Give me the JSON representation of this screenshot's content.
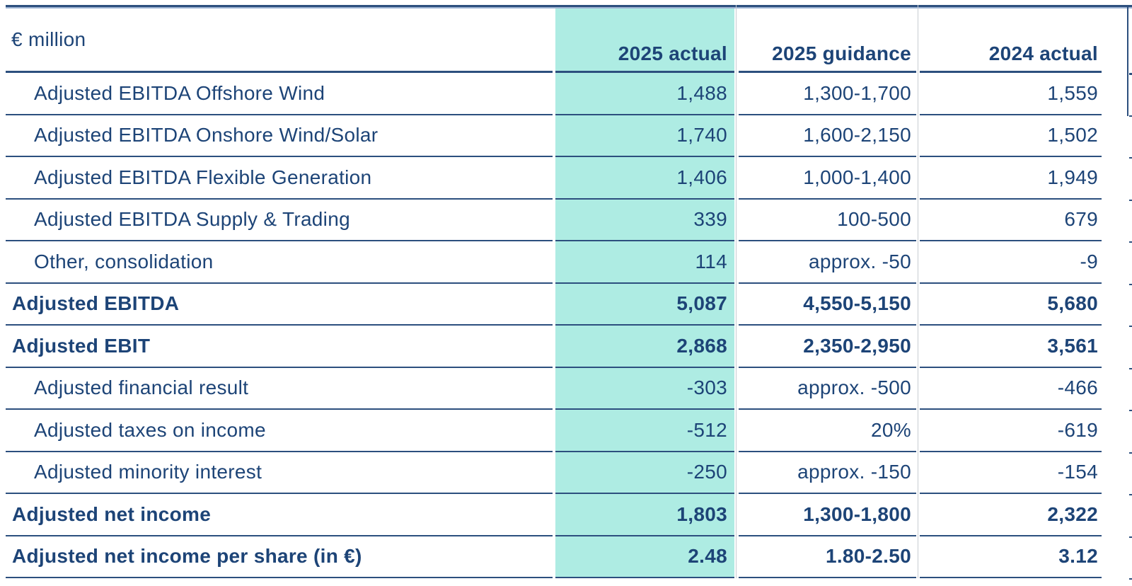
{
  "table": {
    "unit_label": "€ million",
    "columns": [
      "2025 actual",
      "2025 guidance",
      "2024 actual"
    ],
    "highlight_column": "2025 actual",
    "rows": [
      {
        "label": "Adjusted EBITDA Offshore Wind",
        "indent": true,
        "bold": false,
        "values": [
          "1,488",
          "1,300-1,700",
          "1,559"
        ]
      },
      {
        "label": "Adjusted EBITDA Onshore Wind/Solar",
        "indent": true,
        "bold": false,
        "values": [
          "1,740",
          "1,600-2,150",
          "1,502"
        ]
      },
      {
        "label": "Adjusted EBITDA Flexible Generation",
        "indent": true,
        "bold": false,
        "values": [
          "1,406",
          "1,000-1,400",
          "1,949"
        ]
      },
      {
        "label": "Adjusted EBITDA Supply & Trading",
        "indent": true,
        "bold": false,
        "values": [
          "339",
          "100-500",
          "679"
        ]
      },
      {
        "label": "Other, consolidation",
        "indent": true,
        "bold": false,
        "values": [
          "114",
          "approx. -50",
          "-9"
        ]
      },
      {
        "label": "Adjusted EBITDA",
        "indent": false,
        "bold": true,
        "values": [
          "5,087",
          "4,550-5,150",
          "5,680"
        ]
      },
      {
        "label": "Adjusted EBIT",
        "indent": false,
        "bold": true,
        "values": [
          "2,868",
          "2,350-2,950",
          "3,561"
        ]
      },
      {
        "label": "Adjusted financial result",
        "indent": true,
        "bold": false,
        "values": [
          "-303",
          "approx. -500",
          "-466"
        ]
      },
      {
        "label": "Adjusted taxes on income",
        "indent": true,
        "bold": false,
        "values": [
          "-512",
          "20%",
          "-619"
        ]
      },
      {
        "label": "Adjusted minority interest",
        "indent": true,
        "bold": false,
        "values": [
          "-250",
          "approx. -150",
          "-154"
        ]
      },
      {
        "label": "Adjusted net income",
        "indent": false,
        "bold": true,
        "values": [
          "1,803",
          "1,300-1,800",
          "2,322"
        ]
      },
      {
        "label": "Adjusted net income per share (in €)",
        "indent": false,
        "bold": true,
        "values": [
          "2.48",
          "1.80-2.50",
          "3.12"
        ]
      }
    ],
    "colors": {
      "text": "#1d4477",
      "rule": "#2c4f7e",
      "highlight_background": "#aeece3",
      "column_separator": "#c7ccd2"
    }
  }
}
